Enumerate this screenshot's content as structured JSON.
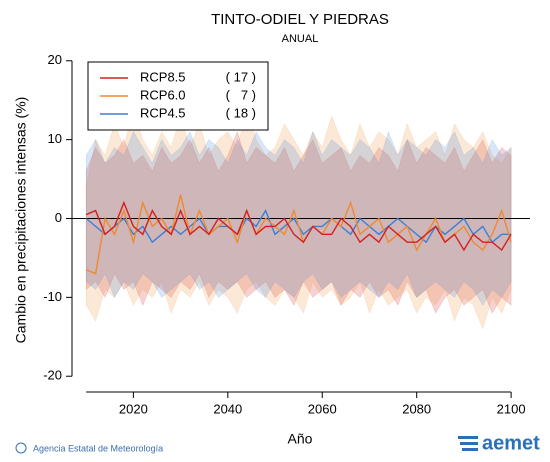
{
  "chart_data": {
    "type": "line",
    "title": "TINTO-ODIEL Y PIEDRAS",
    "subtitle": "ANUAL",
    "x_label": "Año",
    "y_label": "Cambio en precipitaciones intensas (%)",
    "source": "Agencia Estatal de Meteorología",
    "logo_text": "aemet",
    "x": [
      2010,
      2012,
      2014,
      2016,
      2018,
      2020,
      2022,
      2024,
      2026,
      2028,
      2030,
      2032,
      2034,
      2036,
      2038,
      2040,
      2042,
      2044,
      2046,
      2048,
      2050,
      2052,
      2054,
      2056,
      2058,
      2060,
      2062,
      2064,
      2066,
      2068,
      2070,
      2072,
      2074,
      2076,
      2078,
      2080,
      2082,
      2084,
      2086,
      2088,
      2090,
      2092,
      2094,
      2096,
      2098,
      2100
    ],
    "xlim": [
      2007,
      2104
    ],
    "xticks": [
      2020,
      2040,
      2060,
      2080,
      2100
    ],
    "ylim": [
      -22,
      22
    ],
    "yticks": [
      -20,
      -10,
      0,
      10,
      20
    ],
    "hline": 0,
    "legend": "top-left",
    "series": [
      {
        "name": "RCP8.5",
        "count_label": "( 17 )",
        "color": "#d42020",
        "values": [
          0.5,
          1,
          -2,
          -1,
          2,
          -1,
          -2,
          1,
          -1,
          -2,
          1,
          -2,
          -1,
          -2,
          0,
          -1,
          -2,
          1,
          -2,
          -1,
          -1,
          0,
          -2,
          -3,
          -1,
          -2,
          -2,
          0,
          -1,
          -3,
          -2,
          -3,
          -1,
          -2,
          -3,
          -3,
          -2,
          -1,
          -3,
          -2,
          -4,
          -2,
          -3,
          -3,
          -4,
          -2
        ],
        "upper": [
          6,
          9,
          7,
          8,
          10,
          7,
          8,
          6,
          9,
          7,
          8,
          10,
          7,
          9,
          6,
          8,
          11,
          7,
          9,
          8,
          7,
          9,
          6,
          8,
          10,
          7,
          8,
          9,
          6,
          8,
          7,
          9,
          8,
          6,
          10,
          7,
          9,
          8,
          7,
          9,
          6,
          8,
          10,
          7,
          9,
          8
        ],
        "lower": [
          -9,
          -8,
          -10,
          -7,
          -9,
          -8,
          -11,
          -8,
          -9,
          -10,
          -8,
          -9,
          -7,
          -10,
          -8,
          -9,
          -8,
          -10,
          -9,
          -8,
          -10,
          -9,
          -11,
          -8,
          -10,
          -9,
          -8,
          -11,
          -9,
          -10,
          -8,
          -10,
          -9,
          -11,
          -8,
          -10,
          -9,
          -12,
          -10,
          -9,
          -11,
          -10,
          -9,
          -12,
          -10,
          -11
        ]
      },
      {
        "name": "RCP6.0",
        "count_label": "(   7 )",
        "color": "#ee8a30",
        "values": [
          -6.5,
          -7,
          0,
          -2,
          1,
          -3,
          2,
          -1,
          0,
          -2,
          3,
          -2,
          1,
          -2,
          -1,
          0,
          -3,
          1,
          -2,
          0,
          -1,
          -2,
          1,
          -3,
          -1,
          -2,
          0,
          -1,
          2,
          -2,
          -1,
          0,
          -3,
          -2,
          -1,
          -4,
          -2,
          0,
          -3,
          -2,
          -1,
          -3,
          -4,
          -2,
          1,
          -3
        ],
        "upper": [
          4,
          10,
          8,
          12,
          9,
          14,
          10,
          8,
          11,
          9,
          13,
          9,
          12,
          8,
          10,
          11,
          9,
          14,
          10,
          8,
          9,
          12,
          10,
          8,
          11,
          9,
          13,
          10,
          8,
          12,
          9,
          11,
          10,
          8,
          12,
          9,
          10,
          11,
          8,
          12,
          10,
          9,
          11,
          8,
          7,
          9
        ],
        "lower": [
          -11,
          -13,
          -9,
          -10,
          -8,
          -11,
          -9,
          -10,
          -8,
          -12,
          -9,
          -10,
          -8,
          -11,
          -9,
          -10,
          -12,
          -9,
          -8,
          -10,
          -11,
          -9,
          -10,
          -12,
          -8,
          -10,
          -9,
          -11,
          -10,
          -8,
          -12,
          -9,
          -11,
          -10,
          -9,
          -12,
          -10,
          -11,
          -9,
          -13,
          -10,
          -11,
          -14,
          -10,
          -12,
          -9
        ]
      },
      {
        "name": "RCP4.5",
        "count_label": "( 18 )",
        "color": "#3a80d8",
        "values": [
          0,
          -1,
          -2,
          -1,
          0,
          -2,
          -1,
          -3,
          -2,
          -1,
          -2,
          -1,
          0,
          -2,
          -1,
          -1,
          -2,
          0,
          -1,
          1,
          -2,
          -1,
          0,
          -2,
          -1,
          -1,
          0,
          -1,
          -2,
          0,
          -1,
          -2,
          -1,
          0,
          -1,
          -2,
          -3,
          -1,
          -2,
          -1,
          0,
          -2,
          -1,
          -3,
          -2,
          -2
        ],
        "upper": [
          8,
          10,
          7,
          9,
          8,
          11,
          9,
          7,
          10,
          8,
          9,
          11,
          8,
          10,
          9,
          7,
          10,
          8,
          11,
          9,
          8,
          10,
          9,
          7,
          11,
          8,
          10,
          9,
          8,
          10,
          9,
          7,
          11,
          8,
          10,
          9,
          8,
          10,
          9,
          11,
          8,
          9,
          7,
          10,
          8,
          9
        ],
        "lower": [
          -8,
          -9,
          -7,
          -10,
          -8,
          -9,
          -7,
          -8,
          -10,
          -9,
          -8,
          -7,
          -9,
          -8,
          -10,
          -9,
          -8,
          -7,
          -9,
          -10,
          -8,
          -9,
          -10,
          -8,
          -7,
          -9,
          -8,
          -10,
          -9,
          -8,
          -9,
          -10,
          -8,
          -9,
          -7,
          -10,
          -9,
          -8,
          -9,
          -10,
          -8,
          -9,
          -11,
          -9,
          -10,
          -8
        ]
      }
    ]
  }
}
